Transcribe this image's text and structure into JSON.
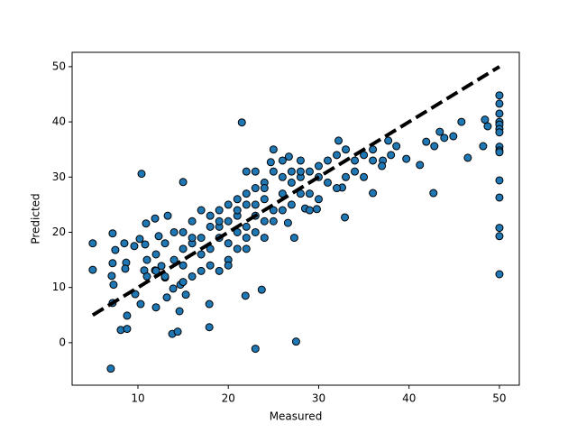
{
  "chart_data": {
    "type": "scatter",
    "xlabel": "Measured",
    "ylabel": "Predicted",
    "color": "#1f77b4",
    "edgecolor": "#000000",
    "x": [
      7.0,
      21.5,
      10.4,
      15.0,
      23.0,
      27.5,
      13.8,
      14.4,
      17.9,
      8.1,
      8.8,
      8.8,
      14.6,
      9.7,
      7.2,
      21.9,
      23.7,
      17.9,
      5.0,
      5.0,
      7.2,
      8.5,
      7.5,
      7.2,
      7.1,
      7.3,
      8.7,
      8.6,
      9.6,
      10.2,
      10.9,
      11.9,
      13.3,
      10.8,
      12.3,
      10.7,
      11.0,
      11.9,
      13.0,
      12.6,
      13.9,
      13.2,
      14.7,
      15.3,
      12.0,
      10.3,
      50,
      50,
      50,
      50,
      50,
      50,
      50,
      50,
      50,
      50,
      50,
      50,
      50,
      50,
      50,
      48.4,
      48.7,
      48.2,
      46.5,
      45.8,
      44.9,
      43.4,
      43.9,
      42.8,
      41.9,
      41.2,
      42.7,
      39.7,
      38.6,
      37.7,
      37.1,
      36.0,
      32.9,
      32.6,
      32.2,
      26.7,
      24.7,
      26.6,
      27.3,
      29.8,
      28.5,
      15,
      16,
      17,
      18,
      19,
      20,
      21,
      22,
      23,
      24,
      25,
      26,
      27,
      28,
      29,
      30,
      31,
      32,
      33,
      34,
      35,
      36,
      20,
      22,
      24,
      21,
      19,
      18,
      17,
      16,
      15,
      14,
      13,
      12,
      14,
      19,
      20,
      21,
      22,
      23,
      24,
      25,
      26,
      27,
      28,
      29,
      30,
      31,
      23,
      22,
      21,
      20,
      19,
      18,
      17,
      16,
      15,
      25,
      26,
      24,
      23,
      22,
      21,
      20,
      19,
      18,
      17,
      16,
      15,
      13,
      12,
      11,
      33,
      34,
      35,
      36,
      37,
      38,
      30,
      29,
      28,
      27,
      26,
      23,
      24,
      22,
      25,
      28,
      32
    ],
    "values": [
      -4.7,
      39.9,
      30.6,
      29.1,
      -1.1,
      0.2,
      1.6,
      2.0,
      2.8,
      2.3,
      2.5,
      4.9,
      5.7,
      8.8,
      7.2,
      8.5,
      9.6,
      7.0,
      18.0,
      13.2,
      19.8,
      18.0,
      16.8,
      14.4,
      12.1,
      10.5,
      14.5,
      13.4,
      17.5,
      18.8,
      21.6,
      22.5,
      23.0,
      17.8,
      19.3,
      13.1,
      15.0,
      13.1,
      11.8,
      13.9,
      9.8,
      8.2,
      10.5,
      8.7,
      6.4,
      7.0,
      44.8,
      43.3,
      41.5,
      40.0,
      39.5,
      38.7,
      38.1,
      35.5,
      34.8,
      34.5,
      29.4,
      26.3,
      20.8,
      19.3,
      12.4,
      40.4,
      39.2,
      35.6,
      33.5,
      40.0,
      37.4,
      38.2,
      37.1,
      35.6,
      36.4,
      32.2,
      27.1,
      33.3,
      35.6,
      36.6,
      33.0,
      27.1,
      22.7,
      28.1,
      36.6,
      33.7,
      32.7,
      21.7,
      19.0,
      24.2,
      24.3,
      20,
      18,
      16,
      21,
      19,
      22,
      20,
      25,
      23,
      26,
      24,
      27,
      29,
      30,
      31,
      32,
      33,
      34,
      35,
      33,
      34,
      35,
      15,
      17,
      19,
      26,
      24,
      17,
      19,
      22,
      17,
      15,
      18,
      16,
      20,
      21,
      18,
      23,
      21,
      28,
      29,
      31,
      30,
      25,
      33,
      27,
      30,
      29,
      20,
      19,
      17,
      14,
      13,
      14,
      13,
      12,
      11,
      22,
      24,
      22,
      25,
      27,
      24,
      25,
      22,
      23,
      24,
      19,
      14,
      12,
      13,
      12,
      30,
      31,
      30,
      33,
      32,
      34,
      26,
      24,
      27,
      31,
      33,
      31,
      28,
      31,
      35,
      31,
      28
    ],
    "reference_line": {
      "x": [
        5,
        50
      ],
      "values": [
        5,
        50
      ],
      "color": "#000000"
    },
    "xlim": [
      2.72,
      52.2
    ],
    "ylim": [
      -7.7,
      52.6
    ],
    "xticks": [
      10,
      20,
      30,
      40,
      50
    ],
    "yticks": [
      0,
      10,
      20,
      30,
      40,
      50
    ]
  }
}
